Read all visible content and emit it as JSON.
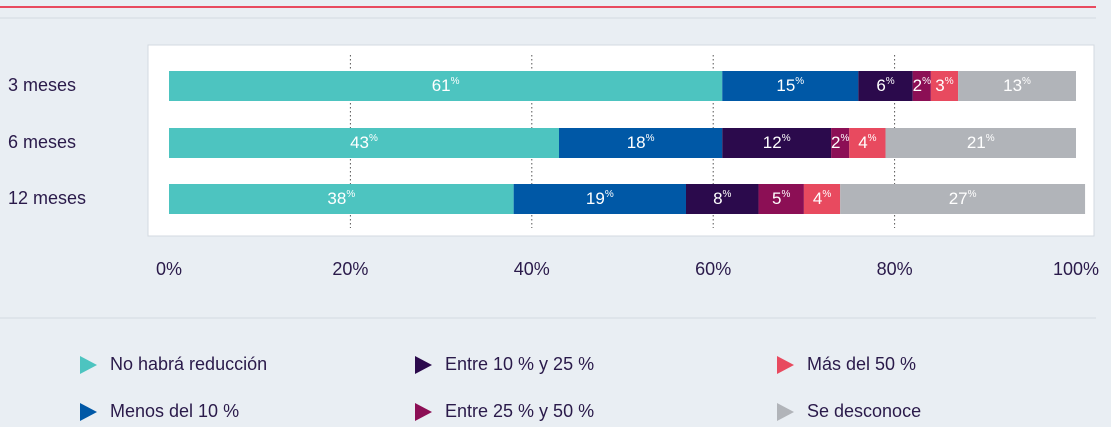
{
  "chart_data": {
    "type": "stacked_bar_horizontal",
    "categories": [
      "3 meses",
      "6 meses",
      "12 meses"
    ],
    "series": [
      {
        "name": "No habrá reducción",
        "color": "#4dc4c0",
        "values": [
          61,
          43,
          38
        ],
        "value_labels": [
          "61%",
          "43%",
          "38%"
        ]
      },
      {
        "name": "Menos del 10 %",
        "color": "#0058a6",
        "values": [
          15,
          18,
          19
        ],
        "value_labels": [
          "15%",
          "18%",
          "19%"
        ]
      },
      {
        "name": "Entre 10 % y 25 %",
        "color": "#2b0a4c",
        "values": [
          6,
          12,
          8
        ],
        "value_labels": [
          "6%",
          "12%",
          "8%"
        ]
      },
      {
        "name": "Entre 25 % y 50 %",
        "color": "#8c0f55",
        "values": [
          2,
          2,
          5
        ],
        "value_labels": [
          "2%",
          "2%",
          "5%"
        ]
      },
      {
        "name": "Más del 50 %",
        "color": "#e84a5f",
        "values": [
          3,
          4,
          4
        ],
        "value_labels": [
          "3%",
          "4%",
          "4%"
        ]
      },
      {
        "name": "Se desconoce",
        "color": "#b1b4b9",
        "values": [
          13,
          21,
          27
        ],
        "value_labels": [
          "13%",
          "21%",
          "27%"
        ]
      }
    ],
    "xlim": [
      0,
      100
    ],
    "xticks": [
      {
        "value": 0,
        "label": "0%"
      },
      {
        "value": 20,
        "label": "20%"
      },
      {
        "value": 40,
        "label": "40%"
      },
      {
        "value": 60,
        "label": "60%"
      },
      {
        "value": 80,
        "label": "80%"
      },
      {
        "value": 100,
        "label": "100%"
      }
    ],
    "grid": true
  }
}
